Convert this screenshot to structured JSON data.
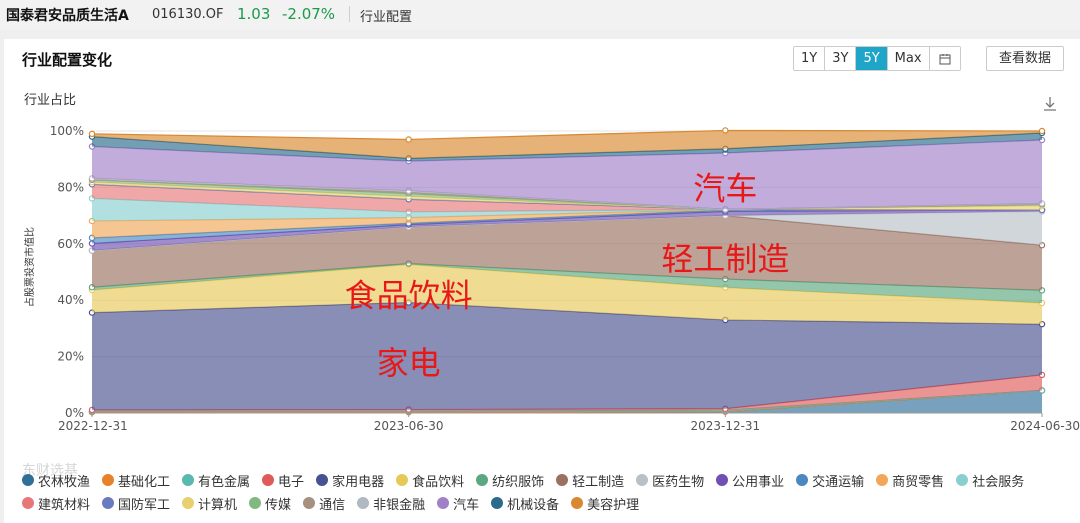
{
  "header": {
    "fund_name": "国泰君安品质生活A",
    "fund_code": "016130.OF",
    "nav": "1.03",
    "change_pct": "-2.07%",
    "breadcrumb": "行业配置"
  },
  "panel": {
    "title": "行业配置变化",
    "range_buttons": [
      "1Y",
      "3Y",
      "5Y",
      "Max"
    ],
    "active_range": "5Y",
    "view_data_label": "查看数据"
  },
  "chart_data": {
    "type": "area",
    "stacked": true,
    "title": "行业占比",
    "ylabel": "占股票投资市值比",
    "ylim": [
      0,
      100
    ],
    "yticks": [
      "0%",
      "20%",
      "40%",
      "60%",
      "80%",
      "100%"
    ],
    "x": [
      "2022-12-31",
      "2023-06-30",
      "2023-12-31",
      "2024-06-30"
    ],
    "grid": true,
    "legend": "bottom",
    "series": [
      {
        "name": "农林牧渔",
        "color": "#2f6f9a",
        "values": [
          0.3,
          0.3,
          0.5,
          8.0
        ]
      },
      {
        "name": "基础化工",
        "color": "#e8822a",
        "values": [
          0,
          0,
          0,
          0
        ]
      },
      {
        "name": "有色金属",
        "color": "#5ab8b0",
        "values": [
          0.3,
          0.3,
          0.5,
          0
        ]
      },
      {
        "name": "电子",
        "color": "#e05a5a",
        "values": [
          0.5,
          0.6,
          0.5,
          5.5
        ]
      },
      {
        "name": "家用电器",
        "color": "#4a5190",
        "values": [
          34.5,
          38.0,
          31.5,
          18.0
        ]
      },
      {
        "name": "食品饮料",
        "color": "#e8c858",
        "values": [
          8.0,
          13.5,
          11.5,
          7.5
        ]
      },
      {
        "name": "纺织服饰",
        "color": "#5aa880",
        "values": [
          1.0,
          0.3,
          3.0,
          4.5
        ]
      },
      {
        "name": "轻工制造",
        "color": "#9a7060",
        "values": [
          13.0,
          13.0,
          22.5,
          16.0
        ]
      },
      {
        "name": "医药生物",
        "color": "#b8c0c8",
        "values": [
          0,
          0,
          0,
          12.0
        ]
      },
      {
        "name": "公用事业",
        "color": "#7050b0",
        "values": [
          2.5,
          0.8,
          1.5,
          0.5
        ]
      },
      {
        "name": "交通运输",
        "color": "#4a88c0",
        "values": [
          2.0,
          0.5,
          0.5,
          0
        ]
      },
      {
        "name": "商贸零售",
        "color": "#f0a858",
        "values": [
          6.0,
          2.0,
          0.2,
          0
        ]
      },
      {
        "name": "社会服务",
        "color": "#88d0d0",
        "values": [
          8.0,
          2.0,
          0,
          0
        ]
      },
      {
        "name": "建筑材料",
        "color": "#e87878",
        "values": [
          5.0,
          4.5,
          0,
          0
        ]
      },
      {
        "name": "国防军工",
        "color": "#6a7ac0",
        "values": [
          0,
          0,
          0,
          0
        ]
      },
      {
        "name": "计算机",
        "color": "#e8d070",
        "values": [
          0.8,
          1.0,
          0,
          1.5
        ]
      },
      {
        "name": "传媒",
        "color": "#80b880",
        "values": [
          0.8,
          1.0,
          0,
          0.5
        ]
      },
      {
        "name": "通信",
        "color": "#a89080",
        "values": [
          0,
          0.5,
          0,
          0
        ]
      },
      {
        "name": "非银金融",
        "color": "#b0b8c0",
        "values": [
          0.5,
          0.5,
          0,
          0.3
        ]
      },
      {
        "name": "汽车",
        "color": "#a080c8",
        "values": [
          11.3,
          10.5,
          20.0,
          22.5
        ]
      },
      {
        "name": "机械设备",
        "color": "#2a6a8a",
        "values": [
          3.5,
          1.0,
          1.5,
          2.5
        ]
      },
      {
        "name": "美容护理",
        "color": "#d88830",
        "values": [
          1.0,
          6.7,
          6.5,
          0.7
        ]
      }
    ],
    "annotations": [
      {
        "text": "汽车",
        "x": "2023-12-31",
        "y": 80
      },
      {
        "text": "轻工制造",
        "x": "2023-12-31",
        "y": 55
      },
      {
        "text": "食品饮料",
        "x": "2023-06-30",
        "y": 42
      },
      {
        "text": "家电",
        "x": "2023-06-30",
        "y": 18
      }
    ]
  },
  "watermark": "东财选基",
  "colors": {
    "accent": "#1ea5c8",
    "up_down": "#1a9a4a"
  }
}
